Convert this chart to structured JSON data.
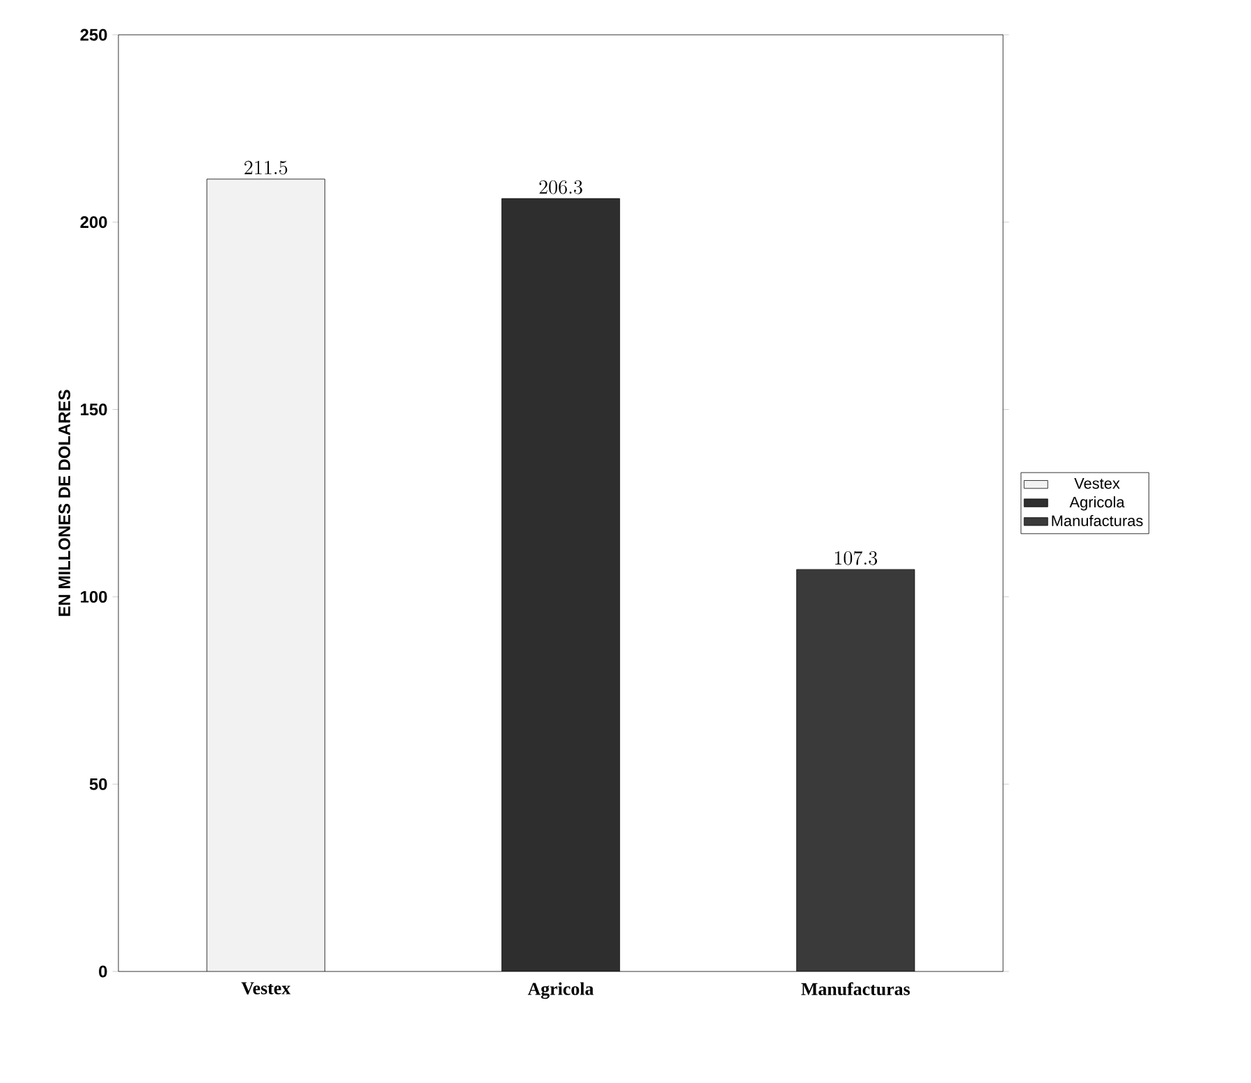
{
  "chart_data": {
    "type": "bar",
    "ylabel": "EN MILLONES DE DOLARES",
    "categories": [
      "Vestex",
      "Agricola",
      "Manufacturas"
    ],
    "series": [
      {
        "name": "Vestex",
        "color": "#f2f2f2",
        "values": [
          211.5,
          null,
          null
        ]
      },
      {
        "name": "Agricola",
        "color": "#2e2e2e",
        "values": [
          null,
          206.3,
          null
        ]
      },
      {
        "name": "Manufacturas",
        "color": "#3a3a3a",
        "values": [
          null,
          null,
          107.3
        ]
      }
    ],
    "ylim": [
      0,
      250
    ],
    "yticks": [
      0,
      50,
      100,
      150,
      200,
      250
    ],
    "data_labels": true,
    "legend": "right",
    "grid": false
  }
}
